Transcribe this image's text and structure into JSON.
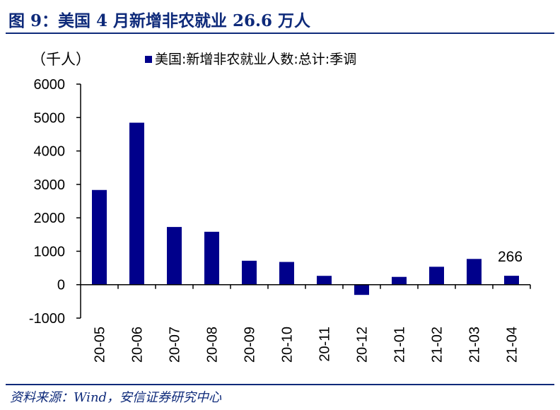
{
  "figure": {
    "title": "图 9：美国 4 月新增非农就业 26.6 万人",
    "source": "资料来源：Wind，安信证券研究中心"
  },
  "chart_data": {
    "type": "bar",
    "ylabel": "（千人）",
    "categories": [
      "20-05",
      "20-06",
      "20-07",
      "20-08",
      "20-09",
      "20-10",
      "20-11",
      "20-12",
      "21-01",
      "21-02",
      "21-03",
      "21-04"
    ],
    "series": [
      {
        "name": "美国:新增非农就业人数:总计:季调",
        "values": [
          2833,
          4846,
          1726,
          1583,
          716,
          680,
          264,
          -306,
          233,
          536,
          770,
          266
        ]
      }
    ],
    "ylim": [
      -1000,
      6000
    ],
    "yticks": [
      "6000",
      "5000",
      "4000",
      "3000",
      "2000",
      "1000",
      "0",
      "-1000"
    ],
    "data_labels": [
      {
        "category": "21-04",
        "text": "266"
      }
    ],
    "bar_color": "#00008b",
    "legend_position": "top",
    "grid": false
  }
}
